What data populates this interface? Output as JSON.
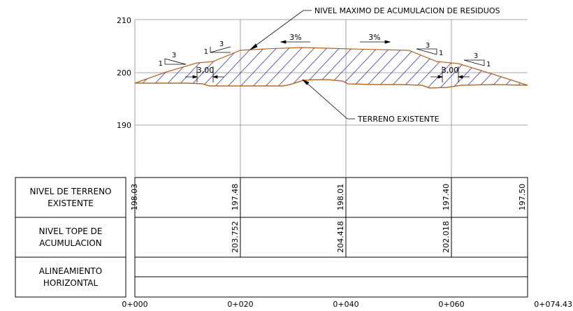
{
  "profile": {
    "y_axis": {
      "ticks": [
        {
          "value": 210,
          "label": "210"
        },
        {
          "value": 200,
          "label": "200"
        },
        {
          "value": 190,
          "label": "190"
        }
      ]
    },
    "x_axis": {
      "ticks": [
        {
          "station": 0,
          "label": "0+000"
        },
        {
          "station": 20,
          "label": "0+020"
        },
        {
          "station": 40,
          "label": "0+040"
        },
        {
          "station": 60,
          "label": "0+060"
        },
        {
          "station": 74.43,
          "label": "0+074.43"
        }
      ]
    },
    "callouts": {
      "max_level": "NIVEL MAXIMO DE ACUMULACION DE RESIDUOS",
      "terrain": "TERRENO EXISTENTE"
    },
    "slopes": {
      "left_top": "3%",
      "right_top": "3%",
      "left_side": {
        "run": "3",
        "rise": "1"
      },
      "left_upper": {
        "run": "3",
        "rise": "1"
      },
      "right_upper": {
        "run": "3",
        "rise": "1"
      },
      "right_side": {
        "run": "3",
        "rise": "1"
      }
    },
    "berms": {
      "left": "3,00",
      "right": "3,00"
    },
    "colors": {
      "fill_outline": "#b5651d",
      "hatch": "#3a3aa8",
      "grid": "#8a8a8a"
    }
  },
  "table": {
    "rows": [
      {
        "label": "NIVEL DE TERRENO EXISTENTE",
        "label_lines": [
          "NIVEL DE TERRENO",
          "EXISTENTE"
        ],
        "values": [
          {
            "station": 0,
            "text": "198.03"
          },
          {
            "station": 20,
            "text": "197.48"
          },
          {
            "station": 40,
            "text": "198.01"
          },
          {
            "station": 60,
            "text": "197.40"
          },
          {
            "station": 74.43,
            "text": "197.50"
          }
        ]
      },
      {
        "label": "NIVEL TOPE DE ACUMULACION",
        "label_lines": [
          "NIVEL TOPE DE",
          "ACUMULACION"
        ],
        "values": [
          {
            "station": 20,
            "text": "203.752"
          },
          {
            "station": 40,
            "text": "204.418"
          },
          {
            "station": 60,
            "text": "202.018"
          }
        ]
      },
      {
        "label": "ALINEAMIENTO HORIZONTAL",
        "label_lines": [
          "ALINEAMIENTO",
          "HORIZONTAL"
        ],
        "values": []
      }
    ]
  }
}
